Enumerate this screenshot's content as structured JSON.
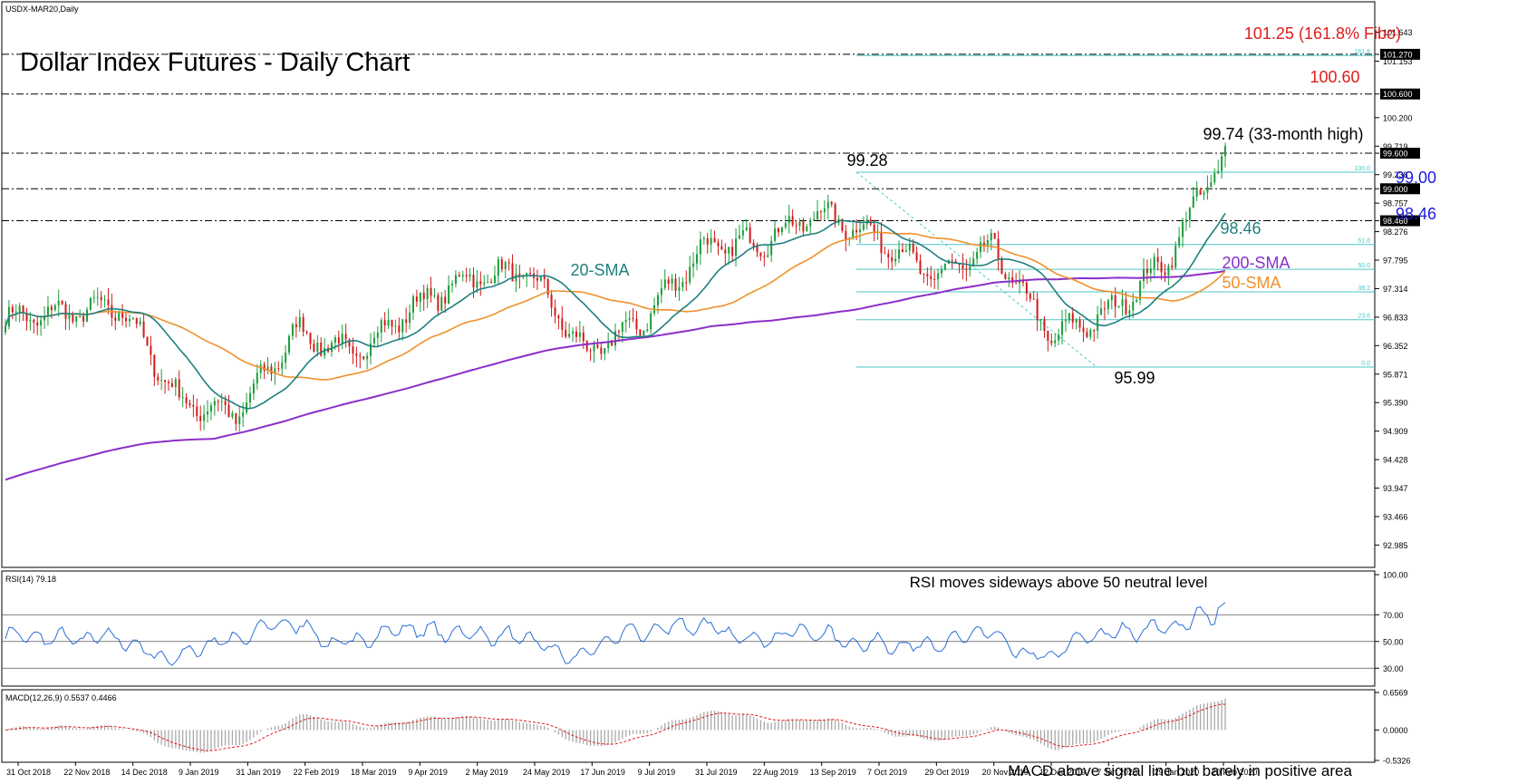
{
  "window": {
    "symbol_label": "USDX-MAR20,Daily"
  },
  "title": "Dollar Index Futures - Daily Chart",
  "colors": {
    "bull": "#1a9e3a",
    "bear": "#d21a1a",
    "sma20": "#1f7f7f",
    "sma50": "#f0902a",
    "sma200": "#8b2fc9",
    "fibo": "#4fc7c7",
    "rsi": "#2a6fd6",
    "macd_hist": "#a8a8a8",
    "macd_signal": "#e01b1b",
    "red_label": "#e01b1b",
    "blue_label": "#1a1ae0",
    "teal_label": "#1f7f7f",
    "purple_label": "#8b2fc9",
    "orange_label": "#f0902a"
  },
  "chart_data": [
    {
      "type": "candlestick",
      "panel": "price",
      "title": "Dollar Index Futures - Daily Chart",
      "ylim": [
        92.7,
        101.85
      ],
      "y_ticks": [
        "101.643",
        "101.270",
        "101.153",
        "100.600",
        "100.200",
        "99.719",
        "99.600",
        "99.238",
        "99.000",
        "98.757",
        "98.460",
        "98.276",
        "97.795",
        "97.314",
        "96.833",
        "96.352",
        "95.871",
        "95.390",
        "94.909",
        "94.428",
        "93.947",
        "93.466",
        "92.985"
      ],
      "highlighted_ticks": [
        "101.270",
        "100.600",
        "99.600",
        "99.000",
        "98.460"
      ],
      "x_labels": [
        "31 Oct 2018",
        "22 Nov 2018",
        "14 Dec 2018",
        "9 Jan 2019",
        "31 Jan 2019",
        "22 Feb 2019",
        "18 Mar 2019",
        "9 Apr 2019",
        "2 May 2019",
        "24 May 2019",
        "17 Jun 2019",
        "9 Jul 2019",
        "31 Jul 2019",
        "22 Aug 2019",
        "13 Sep 2019",
        "7 Oct 2019",
        "29 Oct 2019",
        "20 Nov 2019",
        "12 Dec 2019",
        "7 Jan 2020",
        "29 Jan 2020",
        "20 Feb 2020"
      ],
      "key_points": [
        {
          "date": "31 Oct 2018",
          "close": 96.8
        },
        {
          "date": "22 Nov 2018",
          "close": 96.9
        },
        {
          "date": "14 Dec 2018",
          "close": 97.0
        },
        {
          "date": "9 Jan 2019",
          "close": 95.4
        },
        {
          "date": "31 Jan 2019",
          "close": 95.2
        },
        {
          "date": "22 Feb 2019",
          "close": 96.6
        },
        {
          "date": "18 Mar 2019",
          "close": 96.2
        },
        {
          "date": "9 Apr 2019",
          "close": 97.0
        },
        {
          "date": "2 May 2019",
          "close": 97.5
        },
        {
          "date": "24 May 2019",
          "close": 97.6
        },
        {
          "date": "17 Jun 2019",
          "close": 96.2
        },
        {
          "date": "9 Jul 2019",
          "close": 96.8
        },
        {
          "date": "31 Jul 2019",
          "close": 98.0
        },
        {
          "date": "22 Aug 2019",
          "close": 98.1
        },
        {
          "date": "13 Sep 2019",
          "close": 98.6
        },
        {
          "date": "7 Oct 2019",
          "close": 98.2
        },
        {
          "date": "29 Oct 2019",
          "close": 97.5
        },
        {
          "date": "20 Nov 2019",
          "close": 98.0
        },
        {
          "date": "12 Dec 2019",
          "close": 96.5
        },
        {
          "date": "7 Jan 2020",
          "close": 96.9
        },
        {
          "date": "29 Jan 2020",
          "close": 97.8
        },
        {
          "date": "20 Feb 2020",
          "close": 99.7
        }
      ],
      "fibo_levels": [
        {
          "label": "161.8",
          "value": 101.25
        },
        {
          "label": "100.0",
          "value": 99.28
        },
        {
          "label": "61.8",
          "value": 98.06
        },
        {
          "label": "50.0",
          "value": 97.64
        },
        {
          "label": "38.2",
          "value": 97.26
        },
        {
          "label": "23.6",
          "value": 96.79
        },
        {
          "label": "0.0",
          "value": 95.99
        }
      ],
      "horizontal_levels": [
        101.27,
        100.6,
        99.6,
        99.0,
        98.46
      ],
      "annotations": [
        {
          "text": "101.25 (161.8% Fibo)",
          "color": "red"
        },
        {
          "text": "100.60",
          "color": "red"
        },
        {
          "text": "99.74 (33-month high)",
          "color": "black"
        },
        {
          "text": "99.28",
          "color": "black"
        },
        {
          "text": "99.00",
          "color": "blue"
        },
        {
          "text": "98.46",
          "color": "blue"
        },
        {
          "text": "98.46",
          "color": "teal"
        },
        {
          "text": "20-SMA",
          "color": "teal"
        },
        {
          "text": "200-SMA",
          "color": "purple"
        },
        {
          "text": "50-SMA",
          "color": "orange"
        },
        {
          "text": "95.99",
          "color": "black"
        }
      ],
      "series": [
        {
          "name": "20-SMA"
        },
        {
          "name": "50-SMA"
        },
        {
          "name": "200-SMA"
        }
      ]
    },
    {
      "type": "line",
      "panel": "rsi",
      "header": "RSI(14) 79.18",
      "ylim": [
        20,
        100
      ],
      "y_ticks": [
        "100.00",
        "70.00",
        "50.00",
        "30.00"
      ],
      "note": "RSI moves sideways above 50 neutral level",
      "last_value": 79.18
    },
    {
      "type": "bar",
      "panel": "macd",
      "header": "MACD(12,26,9) 0.5537 0.4466",
      "y_ticks": [
        "0.6569",
        "0.0000",
        "-0.5326"
      ],
      "ylim": [
        -0.5326,
        0.6569
      ],
      "note": "MACD above signal line but barely in positive area",
      "macd_last": 0.5537,
      "signal_last": 0.4466
    }
  ]
}
